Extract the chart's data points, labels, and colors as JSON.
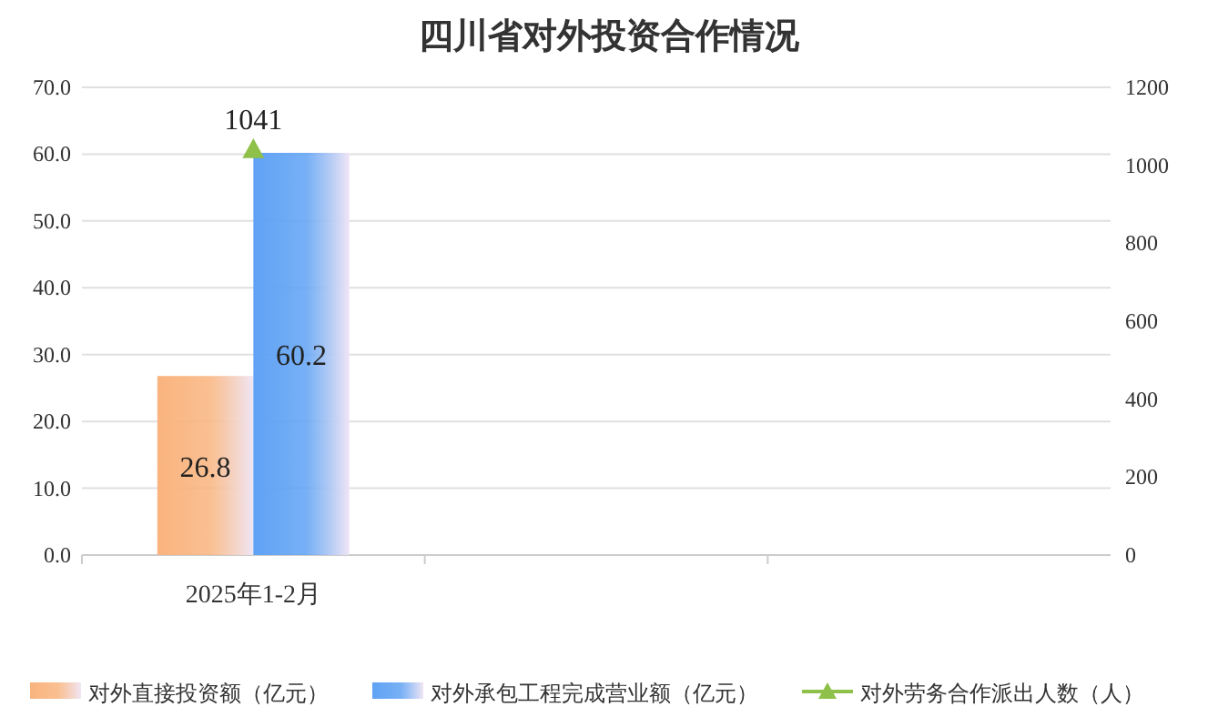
{
  "chart_data": {
    "type": "bar",
    "title": "四川省对外投资合作情况",
    "categories": [
      "2025年1-2月",
      null,
      null
    ],
    "series": [
      {
        "name": "对外直接投资额（亿元）",
        "color": "#f9b47e",
        "values": [
          26.8,
          null,
          null
        ]
      },
      {
        "name": "对外承包工程完成营业额（亿元）",
        "color": "#5fa2f4",
        "values": [
          60.2,
          null,
          null
        ]
      },
      {
        "name": "对外劳务合作派出人数（人）",
        "type": "line",
        "axis": "y2",
        "color": "#8fc04a",
        "values": [
          1041,
          null,
          null
        ]
      }
    ],
    "ylim": [
      0,
      70
    ],
    "yticks": [
      {
        "value": 0,
        "label": "0.0"
      },
      {
        "value": 10,
        "label": "10.0"
      },
      {
        "value": 20,
        "label": "20.0"
      },
      {
        "value": 30,
        "label": "30.0"
      },
      {
        "value": 40,
        "label": "40.0"
      },
      {
        "value": 50,
        "label": "50.0"
      },
      {
        "value": 60,
        "label": "60.0"
      },
      {
        "value": 70,
        "label": "70.0"
      }
    ],
    "y2lim": [
      0,
      1200
    ],
    "y2ticks": [
      0,
      200,
      400,
      600,
      800,
      1000,
      1200
    ],
    "grid": "y",
    "legend": "bottom",
    "marker": "triangle",
    "data_labels": true
  }
}
